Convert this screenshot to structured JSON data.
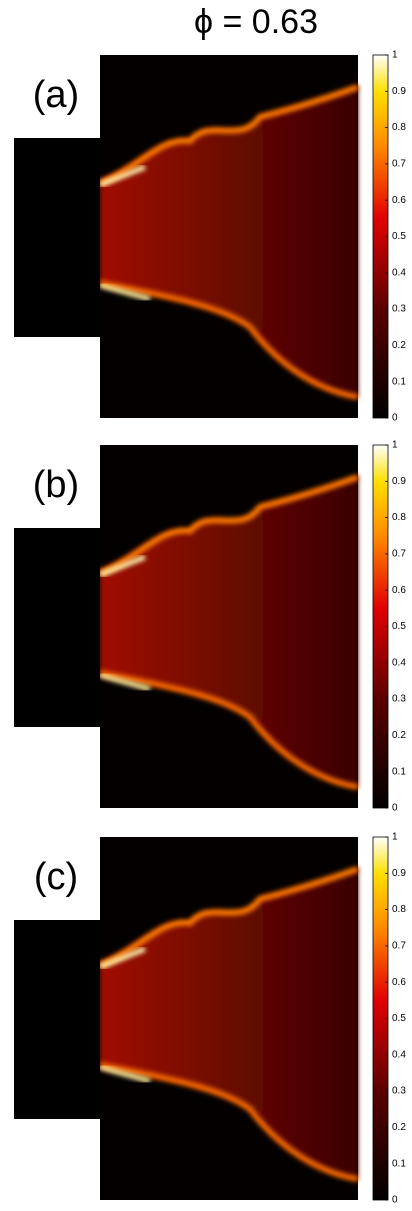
{
  "title": "ϕ = 0.63",
  "panels": [
    {
      "label": "(a)"
    },
    {
      "label": "(b)"
    },
    {
      "label": "(c)"
    }
  ],
  "colorbar": {
    "clim": [
      0,
      1
    ],
    "ticks": [
      0,
      0.1,
      0.2,
      0.3,
      0.4,
      0.5,
      0.6,
      0.7,
      0.8,
      0.9,
      1
    ]
  }
}
